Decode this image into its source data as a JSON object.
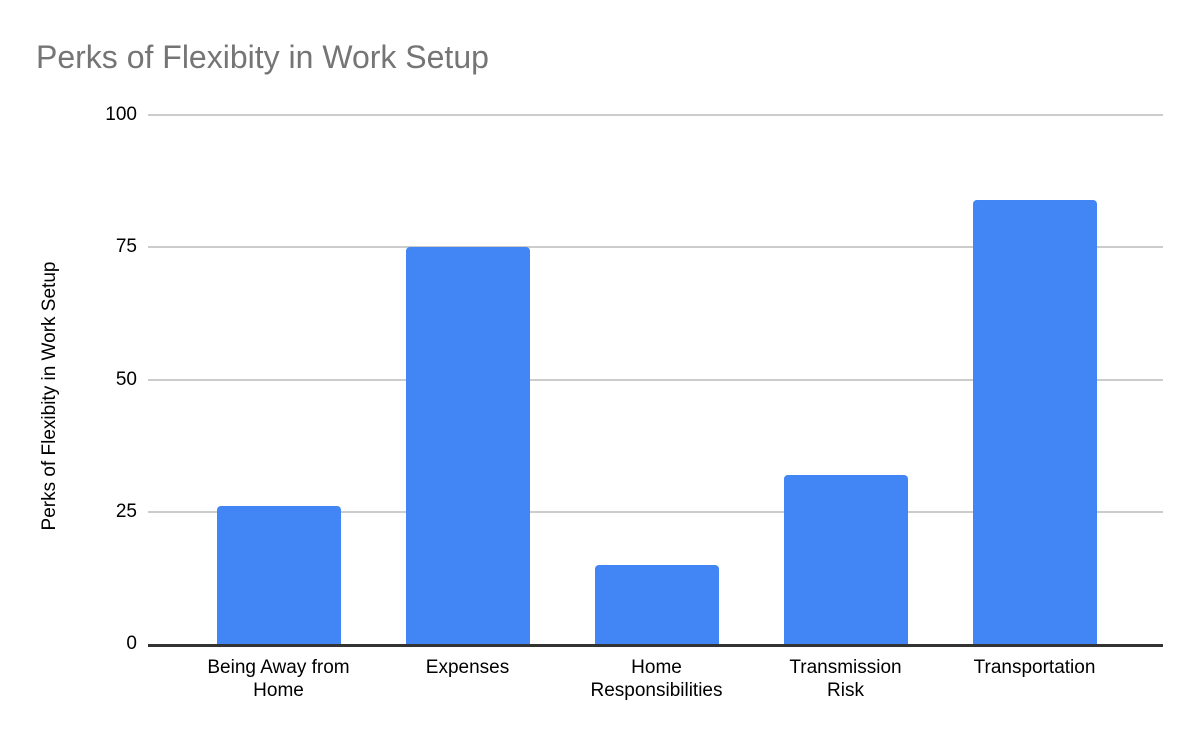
{
  "chart": {
    "title": "Perks of Flexibity in Work Setup",
    "y_axis_title": "Perks of Flexibity in Work Setup"
  },
  "chart_data": {
    "type": "bar",
    "title": "Perks of Flexibity in Work Setup",
    "categories": [
      "Being Away from Home",
      "Expenses",
      "Home Responsibilities",
      "Transmission Risk",
      "Transportation"
    ],
    "values": [
      26,
      75,
      15,
      32,
      84
    ],
    "xlabel": "",
    "ylabel": "Perks of Flexibity in Work Setup",
    "ylim": [
      0,
      100
    ],
    "yticks": [
      0,
      25,
      50,
      75,
      100
    ],
    "grid": true,
    "legend": false,
    "colors": {
      "bar": "#4285f4",
      "title": "#757575",
      "gridline": "#cccccc",
      "axis": "#333333",
      "tick_text": "#000000"
    }
  }
}
